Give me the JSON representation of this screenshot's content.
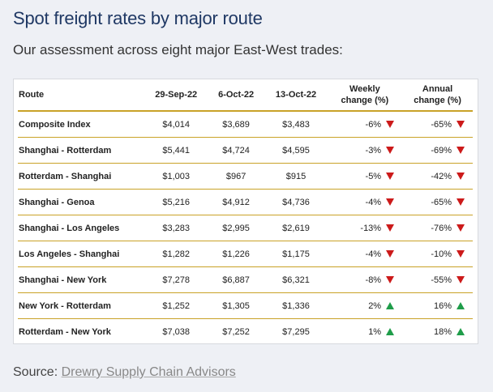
{
  "title": "Spot freight rates by major route",
  "subtitle": "Our assessment across eight major East-West trades:",
  "source": {
    "prefix": "Source:",
    "link": "Drewry Supply Chain Advisors"
  },
  "colors": {
    "title": "#1f3864",
    "rule": "#c9a227",
    "down": "#cc1a1a",
    "up": "#1f9d4a"
  },
  "chart_data": {
    "type": "table",
    "columns": [
      "Route",
      "29-Sep-22",
      "6-Oct-22",
      "13-Oct-22",
      "Weekly change (%)",
      "Annual change (%)"
    ],
    "header_lines": {
      "weekly": [
        "Weekly",
        "change (%)"
      ],
      "annual": [
        "Annual",
        "change (%)"
      ]
    },
    "rows": [
      {
        "route": "Composite Index",
        "d1": "$4,014",
        "d2": "$3,689",
        "d3": "$3,483",
        "weekly": "-6%",
        "weekly_dir": "down",
        "annual": "-65%",
        "annual_dir": "down"
      },
      {
        "route": "Shanghai - Rotterdam",
        "d1": "$5,441",
        "d2": "$4,724",
        "d3": "$4,595",
        "weekly": "-3%",
        "weekly_dir": "down",
        "annual": "-69%",
        "annual_dir": "down"
      },
      {
        "route": "Rotterdam - Shanghai",
        "d1": "$1,003",
        "d2": "$967",
        "d3": "$915",
        "weekly": "-5%",
        "weekly_dir": "down",
        "annual": "-42%",
        "annual_dir": "down"
      },
      {
        "route": "Shanghai - Genoa",
        "d1": "$5,216",
        "d2": "$4,912",
        "d3": "$4,736",
        "weekly": "-4%",
        "weekly_dir": "down",
        "annual": "-65%",
        "annual_dir": "down"
      },
      {
        "route": "Shanghai - Los Angeles",
        "d1": "$3,283",
        "d2": "$2,995",
        "d3": "$2,619",
        "weekly": "-13%",
        "weekly_dir": "down",
        "annual": "-76%",
        "annual_dir": "down"
      },
      {
        "route": "Los Angeles - Shanghai",
        "d1": "$1,282",
        "d2": "$1,226",
        "d3": "$1,175",
        "weekly": "-4%",
        "weekly_dir": "down",
        "annual": "-10%",
        "annual_dir": "down"
      },
      {
        "route": "Shanghai - New York",
        "d1": "$7,278",
        "d2": "$6,887",
        "d3": "$6,321",
        "weekly": "-8%",
        "weekly_dir": "down",
        "annual": "-55%",
        "annual_dir": "down"
      },
      {
        "route": "New York - Rotterdam",
        "d1": "$1,252",
        "d2": "$1,305",
        "d3": "$1,336",
        "weekly": "2%",
        "weekly_dir": "up",
        "annual": "16%",
        "annual_dir": "up"
      },
      {
        "route": "Rotterdam - New York",
        "d1": "$7,038",
        "d2": "$7,252",
        "d3": "$7,295",
        "weekly": "1%",
        "weekly_dir": "up",
        "annual": "18%",
        "annual_dir": "up"
      }
    ]
  }
}
